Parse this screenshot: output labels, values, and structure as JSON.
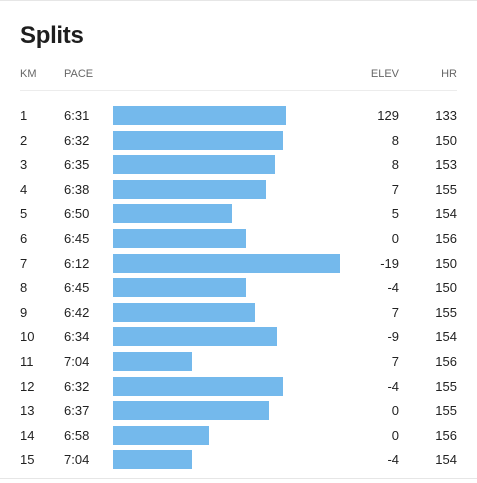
{
  "title": "Splits",
  "headers": {
    "km": "KM",
    "pace": "PACE",
    "elev": "ELEV",
    "hr": "HR"
  },
  "colors": {
    "bar": "#74b9ec"
  },
  "splits": [
    {
      "km": "1",
      "pace": "6:31",
      "elev": "129",
      "hr": "133",
      "pace_seconds": 391
    },
    {
      "km": "2",
      "pace": "6:32",
      "elev": "8",
      "hr": "150",
      "pace_seconds": 392
    },
    {
      "km": "3",
      "pace": "6:35",
      "elev": "8",
      "hr": "153",
      "pace_seconds": 395
    },
    {
      "km": "4",
      "pace": "6:38",
      "elev": "7",
      "hr": "155",
      "pace_seconds": 398
    },
    {
      "km": "5",
      "pace": "6:50",
      "elev": "5",
      "hr": "154",
      "pace_seconds": 410
    },
    {
      "km": "6",
      "pace": "6:45",
      "elev": "0",
      "hr": "156",
      "pace_seconds": 405
    },
    {
      "km": "7",
      "pace": "6:12",
      "elev": "-19",
      "hr": "150",
      "pace_seconds": 372
    },
    {
      "km": "8",
      "pace": "6:45",
      "elev": "-4",
      "hr": "150",
      "pace_seconds": 405
    },
    {
      "km": "9",
      "pace": "6:42",
      "elev": "7",
      "hr": "155",
      "pace_seconds": 402
    },
    {
      "km": "10",
      "pace": "6:34",
      "elev": "-9",
      "hr": "154",
      "pace_seconds": 394
    },
    {
      "km": "11",
      "pace": "7:04",
      "elev": "7",
      "hr": "156",
      "pace_seconds": 424
    },
    {
      "km": "12",
      "pace": "6:32",
      "elev": "-4",
      "hr": "155",
      "pace_seconds": 392
    },
    {
      "km": "13",
      "pace": "6:37",
      "elev": "0",
      "hr": "155",
      "pace_seconds": 397
    },
    {
      "km": "14",
      "pace": "6:58",
      "elev": "0",
      "hr": "156",
      "pace_seconds": 418
    },
    {
      "km": "15",
      "pace": "7:04",
      "elev": "-4",
      "hr": "154",
      "pace_seconds": 424
    }
  ]
}
